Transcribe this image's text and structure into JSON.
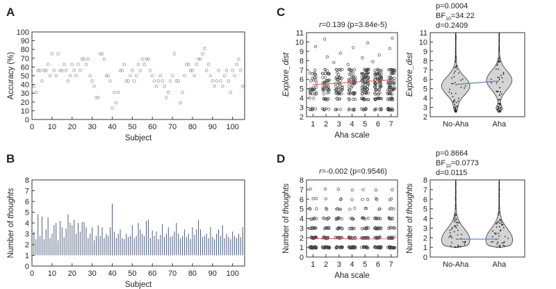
{
  "chart_data": [
    {
      "panel": "A",
      "type": "scatter",
      "xlabel": "Subject",
      "ylabel": "Accuracy (%)",
      "xlim": [
        0,
        106
      ],
      "ylim": [
        0,
        100
      ],
      "xticks": [
        0,
        10,
        20,
        30,
        40,
        50,
        60,
        70,
        80,
        90,
        100
      ],
      "yticks": [
        0,
        10,
        20,
        30,
        40,
        50,
        60,
        70,
        80,
        90,
        100
      ],
      "values": [
        38,
        31,
        56,
        56,
        44,
        56,
        56,
        63,
        50,
        75,
        56,
        50,
        75,
        56,
        56,
        63,
        56,
        44,
        50,
        63,
        56,
        50,
        63,
        56,
        69,
        69,
        63,
        69,
        50,
        44,
        38,
        25,
        25,
        75,
        75,
        69,
        50,
        50,
        44,
        13,
        31,
        19,
        31,
        56,
        56,
        63,
        44,
        44,
        50,
        56,
        44,
        50,
        63,
        56,
        69,
        63,
        69,
        69,
        56,
        50,
        44,
        38,
        44,
        50,
        44,
        38,
        25,
        31,
        44,
        50,
        75,
        44,
        44,
        19,
        31,
        50,
        63,
        63,
        56,
        56,
        50,
        63,
        69,
        69,
        75,
        81,
        56,
        63,
        50,
        44,
        38,
        44,
        56,
        44,
        38,
        50,
        56,
        44,
        31,
        56,
        50,
        63,
        69,
        56,
        38
      ]
    },
    {
      "panel": "B",
      "type": "errorbar",
      "xlabel": "Subject",
      "ylabel": "Number of",
      "ylabel_italic": "thoughts",
      "xlim": [
        0,
        106
      ],
      "ylim": [
        0,
        8
      ],
      "xticks": [
        0,
        10,
        20,
        30,
        40,
        50,
        60,
        70,
        80,
        90,
        100
      ],
      "yticks": [
        0,
        1,
        2,
        3,
        4,
        5,
        6,
        7,
        8
      ],
      "means": [
        1.8,
        2.0,
        1.5,
        2.3,
        1.7,
        2.0,
        1.6,
        2.4,
        1.9,
        1.5,
        2.2,
        1.8,
        2.0,
        2.6,
        1.7,
        2.1,
        1.6,
        1.9,
        2.2,
        2.5,
        1.8,
        2.3,
        2.7,
        2.0,
        2.6,
        2.4,
        1.9,
        2.1,
        1.7,
        2.0,
        1.6,
        1.8,
        2.2,
        1.9,
        2.4,
        1.7,
        2.0,
        1.8,
        2.1,
        2.6,
        1.9,
        1.7,
        2.2,
        2.0,
        1.8,
        1.6,
        2.1,
        1.9,
        1.7,
        2.3,
        2.0,
        1.8,
        2.4,
        2.2,
        1.9,
        2.1,
        2.6,
        2.3,
        1.7,
        2.0,
        1.8,
        2.2,
        1.6,
        1.9,
        2.1,
        1.7,
        2.0,
        2.3,
        1.8,
        1.9,
        2.1,
        2.4,
        2.0,
        1.7,
        1.9,
        2.2,
        1.8,
        2.0,
        1.6,
        2.3,
        1.9,
        2.1,
        2.6,
        2.2,
        1.8,
        1.9,
        2.0,
        1.7,
        2.3,
        1.8,
        1.6,
        2.0,
        2.2,
        1.9,
        2.4,
        1.7,
        2.0,
        1.8,
        1.6,
        2.1,
        1.9,
        1.7,
        2.0,
        1.8,
        2.3
      ],
      "lows": [
        1,
        1,
        1,
        1,
        1,
        1,
        1,
        1,
        1,
        1,
        1,
        1,
        1,
        1,
        1,
        1,
        1,
        1,
        1,
        1,
        1,
        1,
        1,
        1,
        1,
        1,
        1,
        1,
        1,
        1,
        1,
        1,
        1,
        1,
        1,
        1,
        1,
        1,
        1,
        1,
        1,
        1,
        1,
        1,
        1,
        1,
        1,
        1,
        1,
        1,
        1,
        1,
        1,
        1,
        1,
        1,
        1,
        1,
        1,
        1,
        1,
        1,
        1,
        1,
        1,
        1,
        1,
        1,
        1,
        1,
        1,
        1,
        1,
        1,
        1,
        1,
        1,
        1,
        1,
        1,
        1,
        1,
        1,
        1,
        1,
        1,
        1,
        1,
        1,
        1,
        1,
        1,
        1,
        1,
        1,
        1,
        1,
        1,
        1,
        1,
        1,
        1,
        1,
        1,
        1
      ],
      "highs": [
        3.2,
        2.5,
        4.8,
        2.8,
        4.6,
        2.5,
        3.4,
        4.5,
        2.6,
        3.0,
        3.8,
        4.0,
        2.4,
        4.2,
        3.6,
        2.7,
        3.5,
        4.8,
        4.0,
        3.8,
        4.3,
        3.0,
        4.0,
        3.2,
        4.1,
        4.1,
        3.6,
        2.6,
        3.0,
        3.6,
        2.4,
        2.8,
        3.8,
        2.8,
        3.6,
        2.6,
        3.0,
        2.8,
        3.6,
        5.8,
        3.2,
        2.6,
        3.0,
        3.4,
        2.6,
        2.5,
        3.0,
        2.7,
        2.8,
        3.8,
        2.6,
        2.8,
        4.0,
        3.4,
        3.0,
        2.8,
        4.2,
        4.3,
        2.6,
        3.3,
        2.8,
        3.2,
        2.5,
        2.9,
        3.9,
        2.7,
        3.0,
        3.6,
        2.7,
        2.8,
        3.2,
        4.0,
        3.0,
        2.6,
        2.8,
        3.4,
        2.7,
        3.0,
        2.5,
        3.6,
        2.9,
        3.4,
        4.3,
        3.4,
        2.7,
        2.8,
        3.0,
        2.6,
        3.6,
        2.7,
        2.5,
        3.0,
        3.4,
        2.8,
        3.8,
        2.6,
        3.0,
        2.7,
        2.5,
        3.2,
        2.8,
        2.6,
        3.0,
        2.7,
        3.6
      ]
    },
    {
      "panel": "C",
      "type": "scatter",
      "title_prefix": "r",
      "title": "=0.139 (p=3.84e-5)",
      "xlabel": "Aha scale",
      "ylabel": "Explore_dist",
      "xlim": [
        0.5,
        7.5
      ],
      "ylim": [
        2,
        11
      ],
      "xticks": [
        1,
        2,
        3,
        4,
        5,
        6,
        7
      ],
      "yticks": [
        2,
        3,
        4,
        5,
        6,
        7,
        8,
        9,
        10,
        11
      ],
      "levels": [
        2.8,
        3.9,
        4.5,
        4.9,
        5.2,
        5.6,
        5.9,
        6.2,
        6.6,
        7.0
      ],
      "counts_per_x": [
        40,
        55,
        50,
        55,
        90,
        80,
        85
      ],
      "extra_points": [
        [
          1.2,
          9.5
        ],
        [
          1.9,
          10.3
        ],
        [
          2.1,
          8.4
        ],
        [
          3.1,
          8.8
        ],
        [
          4.1,
          9.4
        ],
        [
          4.8,
          8.3
        ],
        [
          5.2,
          9.9
        ],
        [
          6.1,
          8.6
        ],
        [
          6.9,
          9.3
        ],
        [
          7.1,
          10.4
        ],
        [
          2.6,
          7.8
        ],
        [
          3.7,
          7.6
        ],
        [
          5.6,
          7.9
        ]
      ],
      "fit_line": [
        [
          1,
          5.4
        ],
        [
          7,
          5.95
        ]
      ]
    },
    {
      "panel": "C2",
      "type": "violin",
      "annotations": [
        "p=0.0004",
        "BF",
        "10",
        "=34.22",
        "d=0.2409"
      ],
      "categories": [
        "No-Aha",
        "Aha"
      ],
      "ylabel": "Explore_dist",
      "ylim": [
        2,
        11
      ],
      "yticks": [
        2,
        3,
        4,
        5,
        6,
        7,
        8,
        9,
        10,
        11
      ],
      "means": [
        5.45,
        5.82
      ],
      "ranges": [
        [
          2.5,
          11
        ],
        [
          2.5,
          11
        ]
      ]
    },
    {
      "panel": "D",
      "type": "scatter",
      "title_prefix": "r",
      "title": "=-0.002 (p=0.9546)",
      "xlabel": "Aha scale",
      "ylabel": "Number of",
      "ylabel_italic": "thoughts",
      "xlim": [
        0.5,
        7.5
      ],
      "ylim": [
        0,
        8
      ],
      "xticks": [
        1,
        2,
        3,
        4,
        5,
        6,
        7
      ],
      "yticks": [
        0,
        1,
        2,
        3,
        4,
        5,
        6,
        7,
        8
      ],
      "levels": [
        1,
        2,
        3,
        4,
        5,
        6,
        7
      ],
      "level_counts": [
        20,
        14,
        9,
        6,
        3,
        2,
        1
      ],
      "fit_line": [
        [
          1,
          1.9
        ],
        [
          7,
          1.89
        ]
      ]
    },
    {
      "panel": "D2",
      "type": "violin",
      "annotations": [
        "p=0.8664",
        "BF",
        "10",
        "=0.0773",
        "d=0.0115"
      ],
      "categories": [
        "No-Aha",
        "Aha"
      ],
      "ylabel": "Number of",
      "ylabel_italic": "thoughts",
      "ylim": [
        0,
        8
      ],
      "yticks": [
        0,
        1,
        2,
        3,
        4,
        5,
        6,
        7,
        8
      ],
      "means": [
        1.85,
        1.87
      ],
      "ranges": [
        [
          1,
          8
        ],
        [
          1,
          8
        ]
      ]
    }
  ],
  "panel_labels": [
    "A",
    "B",
    "C",
    "D"
  ]
}
